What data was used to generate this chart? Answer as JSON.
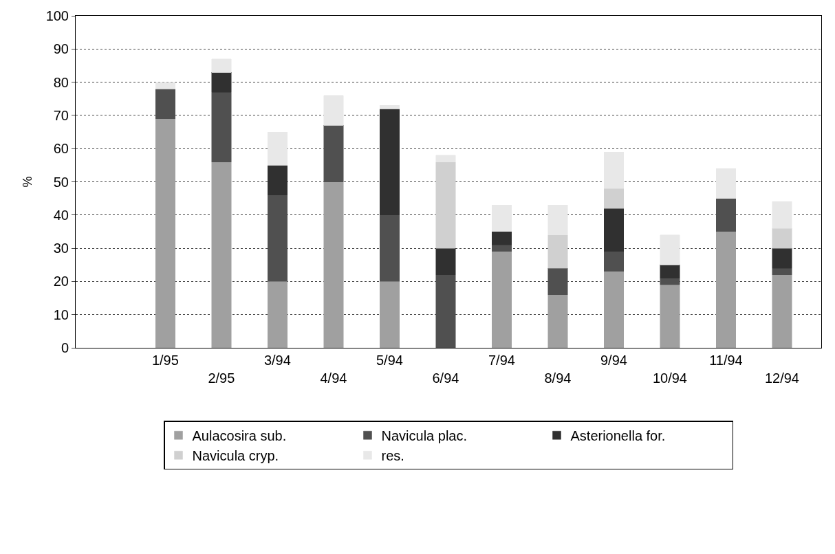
{
  "chart_data": {
    "type": "bar",
    "stacked": true,
    "ylabel": "%",
    "categories": [
      "1/95",
      "2/95",
      "3/94",
      "4/94",
      "5/94",
      "6/94",
      "7/94",
      "8/94",
      "9/94",
      "10/94",
      "11/94",
      "12/94"
    ],
    "series": [
      {
        "name": "Aulacosira sub.",
        "color": "#a0a0a0",
        "values": [
          69,
          56,
          20,
          50,
          20,
          0,
          29,
          16,
          23,
          19,
          35,
          22
        ]
      },
      {
        "name": "Navicula plac.",
        "color": "#505050",
        "values": [
          9,
          21,
          26,
          17,
          20,
          22,
          2,
          8,
          6,
          2,
          10,
          2
        ]
      },
      {
        "name": "Asterionella for.",
        "color": "#303030",
        "values": [
          0,
          6,
          9,
          0,
          32,
          8,
          4,
          0,
          13,
          4,
          0,
          6
        ]
      },
      {
        "name": "Navicula cryp.",
        "color": "#d0d0d0",
        "values": [
          0,
          0,
          0,
          0,
          0,
          26,
          0,
          10,
          6,
          0,
          0,
          6
        ]
      },
      {
        "name": "res.",
        "color": "#e8e8e8",
        "values": [
          2,
          4,
          10,
          9,
          1,
          2,
          8,
          9,
          11,
          9,
          9,
          8
        ]
      }
    ],
    "ylim": [
      0,
      100
    ],
    "yticks": [
      0,
      10,
      20,
      30,
      40,
      50,
      60,
      70,
      80,
      90,
      100
    ],
    "grid": "y",
    "legend": "bottom"
  }
}
